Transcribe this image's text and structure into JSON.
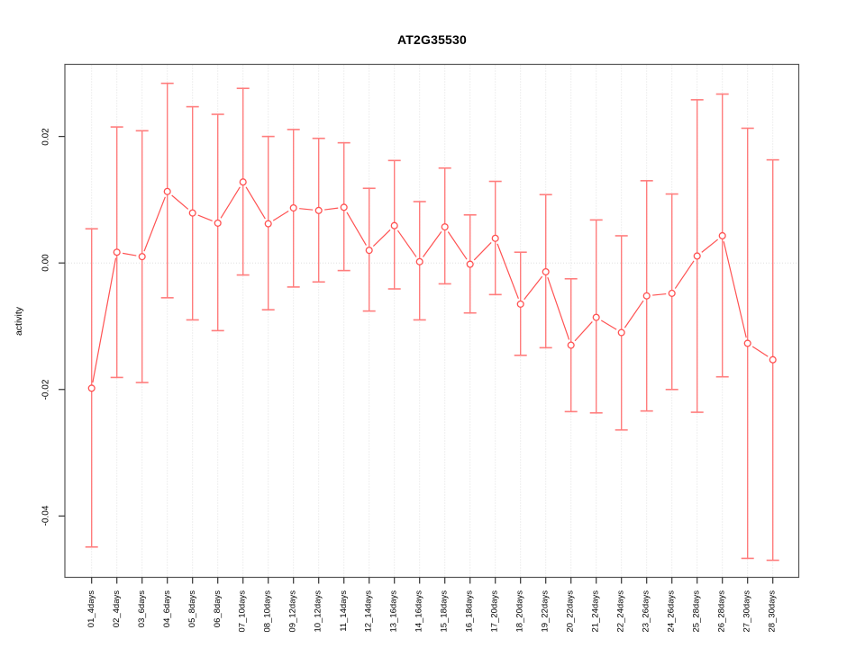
{
  "chart_data": {
    "type": "line",
    "title": "AT2G35530",
    "xlabel": "",
    "ylabel": "activity",
    "categories": [
      "01_4days",
      "02_4days",
      "03_6days",
      "04_6days",
      "05_8days",
      "06_8days",
      "07_10days",
      "08_10days",
      "09_12days",
      "10_12days",
      "11_14days",
      "12_14days",
      "13_16days",
      "14_16days",
      "15_18days",
      "16_18days",
      "17_20days",
      "18_20days",
      "19_22days",
      "20_22days",
      "21_24days",
      "22_24days",
      "23_26days",
      "24_26days",
      "25_28days",
      "26_28days",
      "27_30days",
      "28_30days"
    ],
    "series": [
      {
        "name": "activity",
        "values": [
          -0.0198,
          0.0017,
          0.001,
          0.0113,
          0.0079,
          0.0063,
          0.0128,
          0.0062,
          0.0087,
          0.0083,
          0.0088,
          0.002,
          0.0059,
          0.0002,
          0.0057,
          -0.0002,
          0.0039,
          -0.0065,
          -0.0014,
          -0.013,
          -0.0086,
          -0.011,
          -0.0052,
          -0.0048,
          0.0011,
          0.0043,
          -0.0127,
          -0.0153
        ],
        "ci_upper": [
          0.0054,
          0.0215,
          0.0209,
          0.0284,
          0.0247,
          0.0235,
          0.0276,
          0.02,
          0.0211,
          0.0197,
          0.019,
          0.0118,
          0.0162,
          0.0097,
          0.015,
          0.0076,
          0.0129,
          0.0017,
          0.0108,
          -0.0025,
          0.0068,
          0.0043,
          0.013,
          0.0109,
          0.0258,
          0.0267,
          0.0213,
          0.0163
        ],
        "ci_lower": [
          -0.0449,
          -0.0181,
          -0.0189,
          -0.0055,
          -0.009,
          -0.0107,
          -0.0019,
          -0.0074,
          -0.0038,
          -0.003,
          -0.0012,
          -0.0076,
          -0.0041,
          -0.009,
          -0.0033,
          -0.0079,
          -0.005,
          -0.0146,
          -0.0134,
          -0.0235,
          -0.0237,
          -0.0264,
          -0.0234,
          -0.02,
          -0.0236,
          -0.018,
          -0.0467,
          -0.047
        ]
      }
    ],
    "yticks": [
      -0.04,
      -0.02,
      0.0,
      0.02
    ],
    "ytick_labels": [
      "-0.04",
      "-0.02",
      "0.00",
      "0.02"
    ],
    "ylim": [
      -0.0497,
      0.0314
    ],
    "grid": {
      "vertical_dotted_per_category": true,
      "zero_line_dotted": true,
      "legend": "none"
    },
    "colors": {
      "point_line": "#ff5252",
      "error_bar": "#ff7d7d",
      "grid": "#e0e0e0",
      "box": "#555555",
      "tick": "#333333",
      "text": "#000000",
      "background": "#ffffff"
    }
  }
}
